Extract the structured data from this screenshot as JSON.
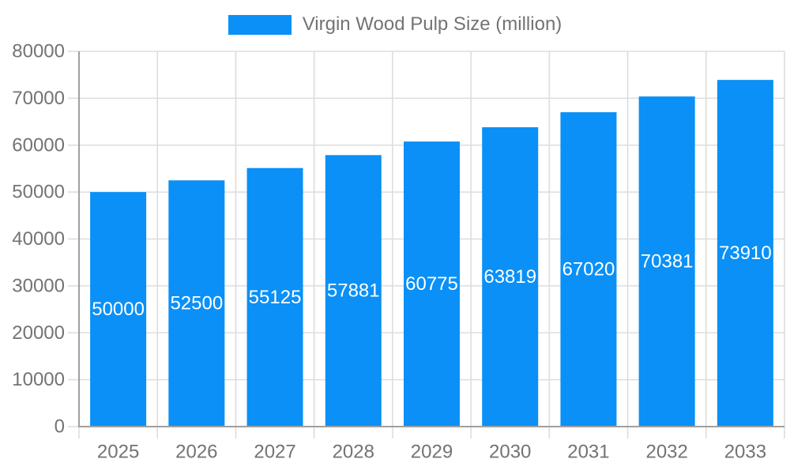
{
  "legend": {
    "label": "Virgin Wood Pulp Size (million)"
  },
  "colors": {
    "bar": "#0A90F6",
    "grid": "#DDDDDD",
    "axis": "#A0A0A0",
    "tick_text": "#737373",
    "legend_text": "#737373",
    "bar_label": "#FFFFFF",
    "background": "#FFFFFF"
  },
  "chart_data": {
    "type": "bar",
    "title": "",
    "categories": [
      "2025",
      "2026",
      "2027",
      "2028",
      "2029",
      "2030",
      "2031",
      "2032",
      "2033"
    ],
    "series": [
      {
        "name": "Virgin Wood Pulp Size (million)",
        "values": [
          50000,
          52500,
          55125,
          57881,
          60775,
          63819,
          67020,
          70381,
          73910
        ]
      }
    ],
    "xlabel": "",
    "ylabel": "",
    "ylim": [
      0,
      80000
    ],
    "yticks": [
      0,
      10000,
      20000,
      30000,
      40000,
      50000,
      60000,
      70000,
      80000
    ],
    "grid": true,
    "legend_position": "top-center",
    "value_labels": "inside-center"
  }
}
